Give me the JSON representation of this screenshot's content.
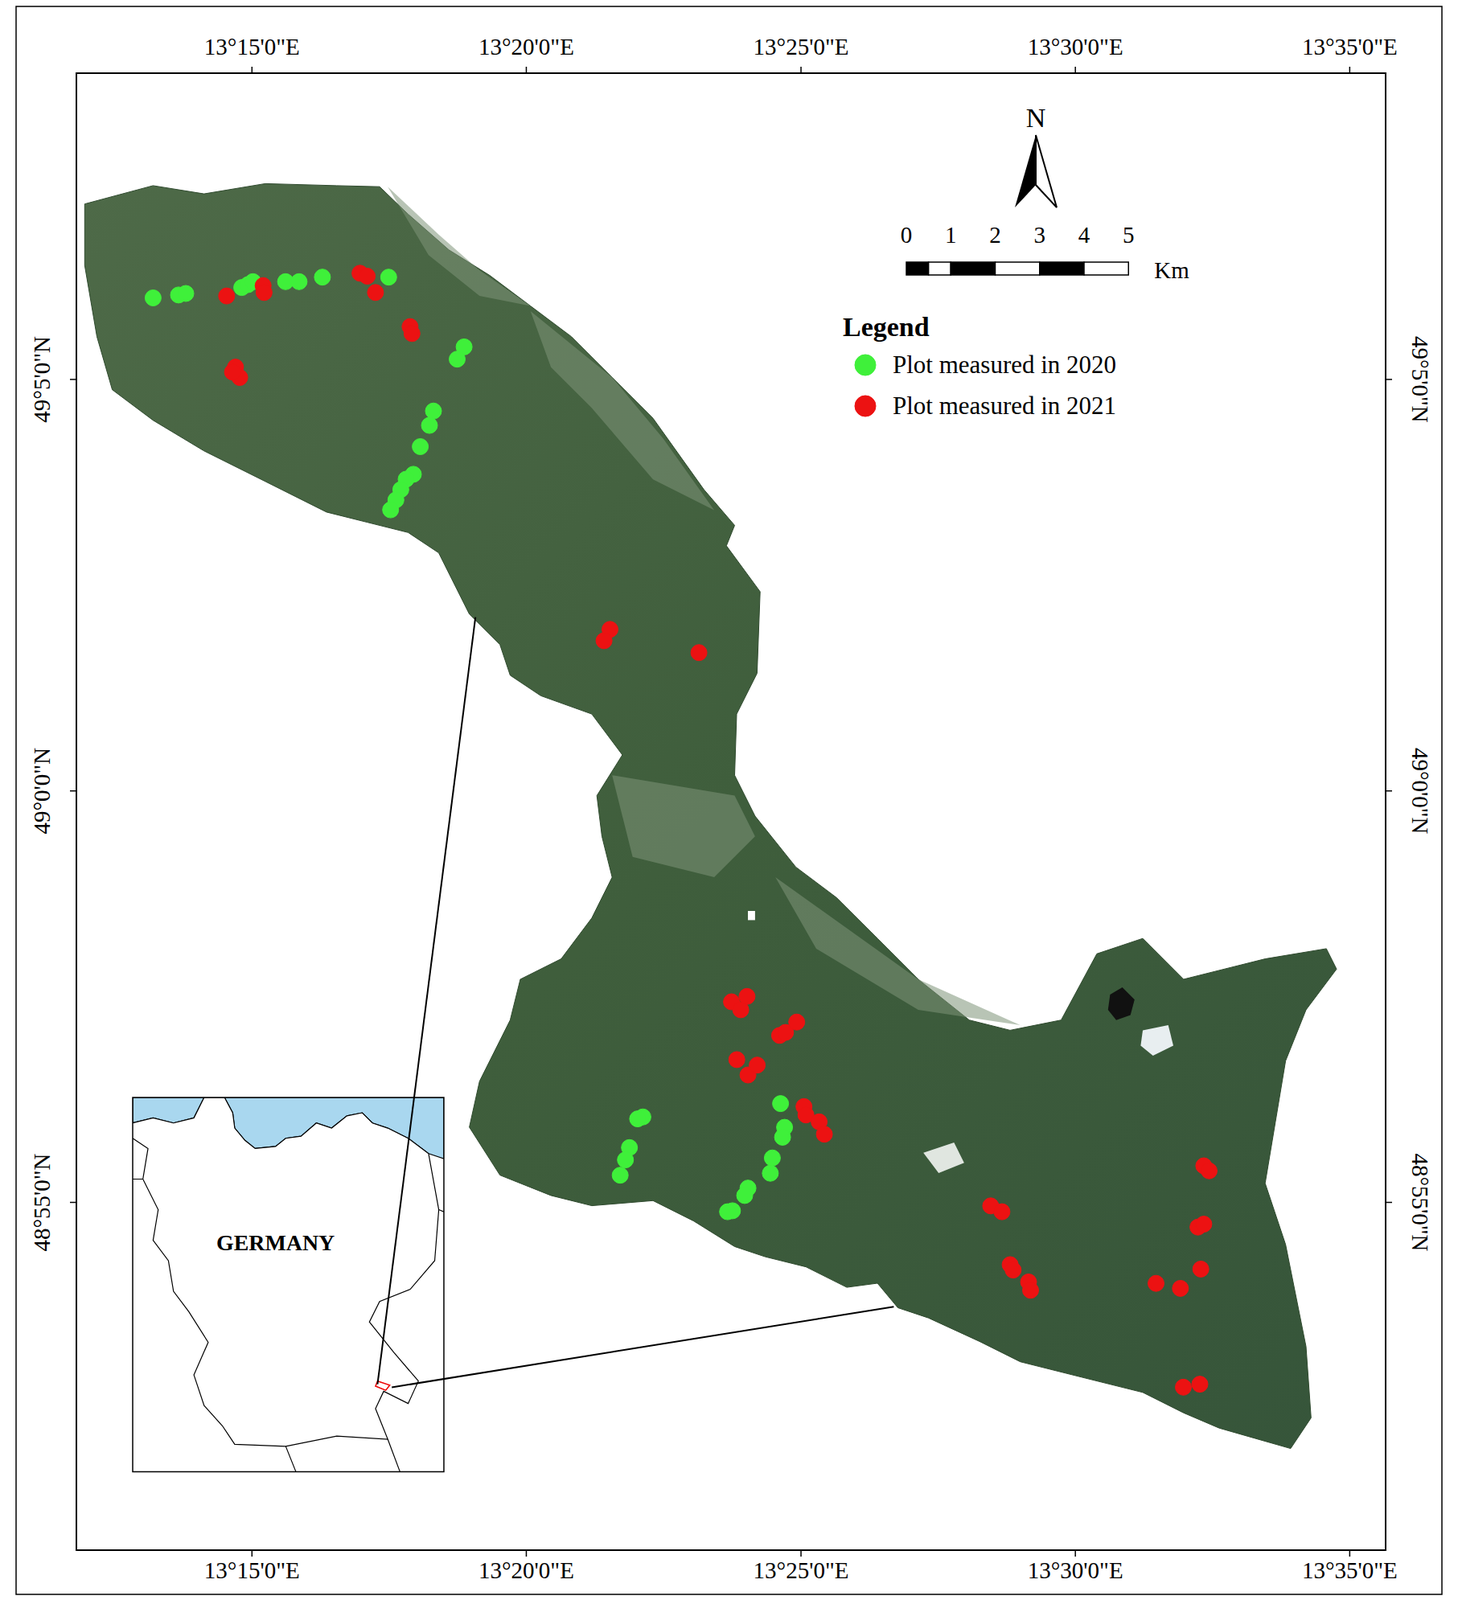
{
  "chart_data": {
    "type": "scatter",
    "marker": "circle",
    "legend": "top-right",
    "legend_title": "Legend",
    "north_arrow": "N",
    "scale_bar": {
      "ticks": [
        0,
        1,
        2,
        3,
        4,
        5
      ],
      "unit": "Km"
    },
    "inset": {
      "label": "GERMANY"
    },
    "xlim": [
      13.1967,
      13.5942
    ],
    "ylim": [
      48.8463,
      49.1453
    ],
    "xticks": [
      {
        "value": 13.25,
        "label": "13°15'0\"E"
      },
      {
        "value": 13.3333,
        "label": "13°20'0\"E"
      },
      {
        "value": 13.4167,
        "label": "13°25'0\"E"
      },
      {
        "value": 13.5,
        "label": "13°30'0\"E"
      },
      {
        "value": 13.5833,
        "label": "13°35'0\"E"
      }
    ],
    "yticks": [
      {
        "value": 48.9167,
        "label": "48°55'0\"N"
      },
      {
        "value": 49.0,
        "label": "49°0'0\"N"
      },
      {
        "value": 49.0833,
        "label": "49°5'0\"N"
      }
    ],
    "series": [
      {
        "name": "Plot measured in 2020",
        "color": "#3ff03a",
        "x": [
          13.22,
          13.2277,
          13.2299,
          13.2469,
          13.2488,
          13.2503,
          13.2602,
          13.2643,
          13.2714,
          13.2915,
          13.3144,
          13.3123,
          13.3051,
          13.3039,
          13.3011,
          13.299,
          13.2968,
          13.2952,
          13.2937,
          13.2921,
          13.3687,
          13.3671,
          13.3646,
          13.3634,
          13.3618,
          13.4105,
          13.4117,
          13.4111,
          13.408,
          13.4074,
          13.4006,
          13.3996,
          13.3959,
          13.3944
        ],
        "y": [
          49.0998,
          49.1004,
          49.1007,
          49.1019,
          49.1025,
          49.1031,
          49.1031,
          49.1031,
          49.104,
          49.104,
          49.0899,
          49.0874,
          49.0769,
          49.074,
          49.0697,
          49.0641,
          49.0631,
          49.061,
          49.0589,
          49.0569,
          48.934,
          48.9336,
          48.9278,
          48.9253,
          48.9222,
          48.9367,
          48.9319,
          48.9299,
          48.9257,
          48.9226,
          48.9196,
          48.9181,
          48.915,
          48.9148
        ]
      },
      {
        "name": "Plot measured in 2021",
        "color": "#ec1212",
        "x": [
          13.2423,
          13.2534,
          13.2537,
          13.2828,
          13.285,
          13.2875,
          13.298,
          13.2986,
          13.245,
          13.2463,
          13.2441,
          13.3587,
          13.3569,
          13.3857,
          13.3956,
          13.3984,
          13.4003,
          13.4102,
          13.412,
          13.4154,
          13.3972,
          13.4006,
          13.4034,
          13.4176,
          13.4182,
          13.4222,
          13.4238,
          13.4743,
          13.4777,
          13.4802,
          13.4811,
          13.4858,
          13.4864,
          13.539,
          13.5406,
          13.5372,
          13.539,
          13.5381,
          13.5245,
          13.5319,
          13.5328,
          13.5378
        ],
        "y": [
          49.1002,
          49.1023,
          49.1009,
          49.1048,
          49.1042,
          49.1009,
          49.094,
          49.0926,
          49.0858,
          49.0837,
          49.0848,
          49.0327,
          49.0304,
          49.028,
          48.9573,
          48.9557,
          48.9584,
          48.9505,
          48.9511,
          48.9532,
          48.9456,
          48.9425,
          48.9445,
          48.9361,
          48.9344,
          48.933,
          48.9305,
          48.916,
          48.9148,
          48.9041,
          48.903,
          48.9006,
          48.8989,
          48.9241,
          48.9231,
          48.9117,
          48.9123,
          48.9032,
          48.9003,
          48.8993,
          48.8793,
          48.8799
        ]
      }
    ]
  }
}
